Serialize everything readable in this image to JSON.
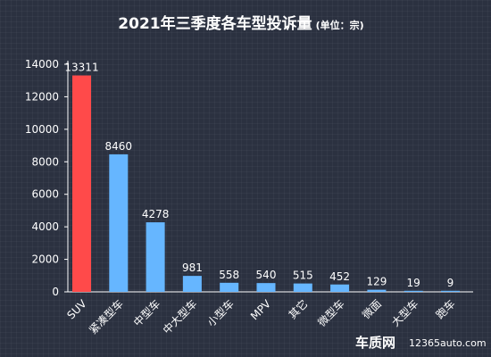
{
  "title": "2021年三季度各车型投诉量",
  "unit": "(单位：宗)",
  "watermark": {
    "logo": "车质网",
    "url": "12365auto.com"
  },
  "colors": {
    "highlight": "#ff4a4a",
    "bar": "#66b6ff",
    "axis": "#ffffff",
    "background": "#2b3140"
  },
  "chart_data": {
    "type": "bar",
    "title": "2021年三季度各车型投诉量",
    "xlabel": "",
    "ylabel": "",
    "ylim": [
      0,
      14000
    ],
    "yticks": [
      0,
      2000,
      4000,
      6000,
      8000,
      10000,
      12000,
      14000
    ],
    "grid": false,
    "categories": [
      "SUV",
      "紧凑型车",
      "中型车",
      "中大型车",
      "小型车",
      "MPV",
      "其它",
      "微型车",
      "微面",
      "大型车",
      "跑车"
    ],
    "values": [
      13311,
      8460,
      4278,
      981,
      558,
      540,
      515,
      452,
      129,
      19,
      9
    ],
    "highlight_index": 0
  }
}
